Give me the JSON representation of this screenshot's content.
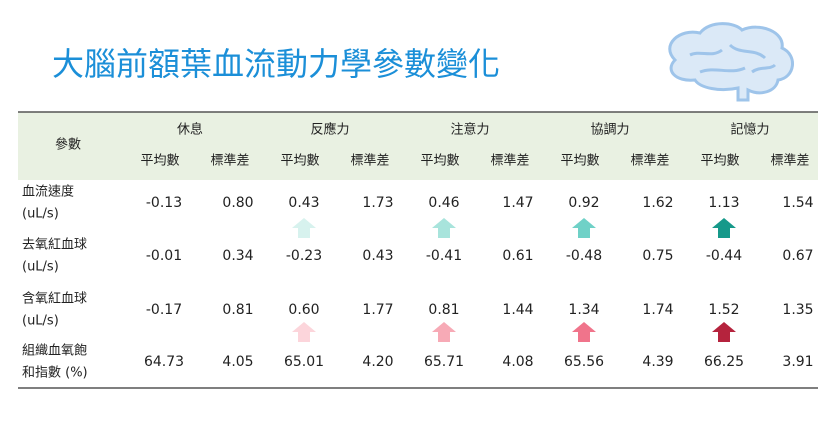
{
  "title": "大腦前額葉血流動力學參數變化",
  "table": {
    "corner": "參數",
    "groups": [
      "休息",
      "反應力",
      "注意力",
      "協調力",
      "記憶力"
    ],
    "subheaders": [
      "平均數",
      "標準差"
    ],
    "rows": [
      {
        "label": [
          "血流速度",
          "(uL/s)"
        ],
        "cells": [
          "-0.13",
          "0.80",
          "0.43",
          "1.73",
          "0.46",
          "1.47",
          "0.92",
          "1.62",
          "1.13",
          "1.54"
        ]
      },
      {
        "label": [
          "去氧紅血球",
          "(uL/s)"
        ],
        "cells": [
          "-0.01",
          "0.34",
          "-0.23",
          "0.43",
          "-0.41",
          "0.61",
          "-0.48",
          "0.75",
          "-0.44",
          "0.67"
        ]
      },
      {
        "label": [
          "含氧紅血球",
          "(uL/s)"
        ],
        "cells": [
          "-0.17",
          "0.81",
          "0.60",
          "1.77",
          "0.81",
          "1.44",
          "1.34",
          "1.74",
          "1.52",
          "1.35"
        ]
      },
      {
        "label": [
          "組織血氧飽",
          "和指數 (%)"
        ],
        "cells": [
          "64.73",
          "4.05",
          "65.01",
          "4.20",
          "65.71",
          "4.08",
          "65.56",
          "4.39",
          "66.25",
          "3.91"
        ]
      }
    ]
  }
}
